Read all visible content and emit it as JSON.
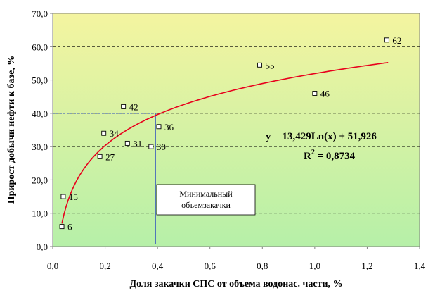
{
  "chart_data": {
    "type": "scatter",
    "title": "",
    "xlabel": "Доля закачки СПС от объема водонас. части, %",
    "ylabel": "Прирост добычи нефти к базе, %",
    "xlim": [
      0,
      1.4
    ],
    "ylim": [
      0,
      70
    ],
    "x_ticks": [
      0,
      0.2,
      0.4,
      0.6,
      0.8,
      1.0,
      1.2,
      1.4
    ],
    "x_tick_labels": [
      "0,0",
      "0,2",
      "0,4",
      "0,6",
      "0,8",
      "1,0",
      "1,2",
      "1,4"
    ],
    "y_ticks": [
      0,
      10,
      20,
      30,
      40,
      50,
      60,
      70
    ],
    "y_tick_labels": [
      "0,0",
      "10,0",
      "20,0",
      "30,0",
      "40,0",
      "50,0",
      "60,0",
      "70,0"
    ],
    "grid": "horizontal dashed",
    "points": [
      {
        "x": 0.035,
        "y": 6.0,
        "label": "6"
      },
      {
        "x": 0.04,
        "y": 15.0,
        "label": "15"
      },
      {
        "x": 0.18,
        "y": 27.0,
        "label": "27"
      },
      {
        "x": 0.195,
        "y": 34.0,
        "label": "34"
      },
      {
        "x": 0.27,
        "y": 42.0,
        "label": "42"
      },
      {
        "x": 0.285,
        "y": 31.0,
        "label": "31"
      },
      {
        "x": 0.375,
        "y": 30.0,
        "label": "30"
      },
      {
        "x": 0.405,
        "y": 36.0,
        "label": "36"
      },
      {
        "x": 0.79,
        "y": 54.5,
        "label": "55"
      },
      {
        "x": 1.0,
        "y": 46.0,
        "label": "46"
      },
      {
        "x": 1.275,
        "y": 62.0,
        "label": "62"
      }
    ],
    "trendline": {
      "type": "log",
      "a": 13.429,
      "b": 51.926,
      "x_range": [
        0.035,
        1.28
      ],
      "color": "#e8001c",
      "equation": "y = 13,429Ln(x) + 51,926",
      "r2_prefix": "R",
      "r2_exp": "2",
      "r2_value": " = 0,8734"
    },
    "reference": {
      "x": 0.392,
      "y": 40,
      "color": "#2f4fbf"
    },
    "annotation": {
      "line1": "Минимальный",
      "line2": "объемзакачки"
    },
    "colors": {
      "gradient_top": "#f4f4a0",
      "gradient_bottom": "#b6f0a8",
      "point_fill": "#ffffff",
      "point_stroke": "#000000"
    }
  }
}
